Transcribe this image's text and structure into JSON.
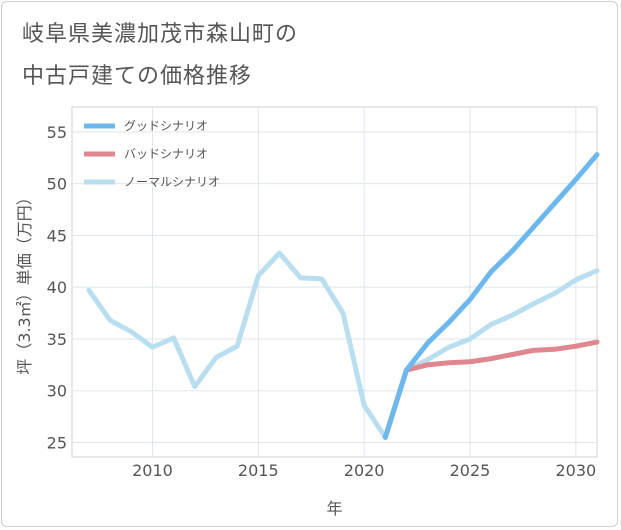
{
  "title_lines": [
    "岐阜県美濃加茂市森山町の",
    "中古戸建ての価格推移"
  ],
  "chart_data": {
    "type": "line",
    "xlabel": "年",
    "ylabel": "坪（3.3㎡）単価（万円）",
    "xlim": [
      2006.2,
      2031
    ],
    "ylim": [
      23.6,
      57.4
    ],
    "xticks": [
      2010,
      2015,
      2020,
      2025,
      2030
    ],
    "yticks": [
      25,
      30,
      35,
      40,
      45,
      50,
      55
    ],
    "grid": true,
    "legend_position": "top-left",
    "series": [
      {
        "name": "グッドシナリオ",
        "color": "#6cb8ee",
        "x": [
          2021,
          2022,
          2023,
          2024,
          2025,
          2026,
          2027,
          2028,
          2029,
          2030,
          2031
        ],
        "values": [
          25.5,
          32.0,
          34.6,
          36.6,
          38.8,
          41.5,
          43.5,
          45.8,
          48.1,
          50.4,
          52.8
        ]
      },
      {
        "name": "バッドシナリオ",
        "color": "#e0868f",
        "x": [
          2021,
          2022,
          2023,
          2024,
          2025,
          2026,
          2027,
          2028,
          2029,
          2030,
          2031
        ],
        "values": [
          25.5,
          32.0,
          32.5,
          32.7,
          32.8,
          33.1,
          33.5,
          33.9,
          34.0,
          34.3,
          34.7
        ]
      },
      {
        "name": "ノーマルシナリオ",
        "color": "#b9def0",
        "x": [
          2007,
          2008,
          2009,
          2010,
          2011,
          2012,
          2013,
          2014,
          2015,
          2016,
          2017,
          2018,
          2019,
          2020,
          2021,
          2022,
          2023,
          2024,
          2025,
          2026,
          2027,
          2028,
          2029,
          2030,
          2031
        ],
        "values": [
          39.7,
          36.8,
          35.7,
          34.2,
          35.1,
          30.4,
          33.2,
          34.3,
          41.1,
          43.3,
          40.9,
          40.8,
          37.5,
          28.6,
          25.5,
          32.0,
          33.0,
          34.2,
          35.0,
          36.4,
          37.3,
          38.4,
          39.4,
          40.7,
          41.6
        ]
      }
    ]
  }
}
